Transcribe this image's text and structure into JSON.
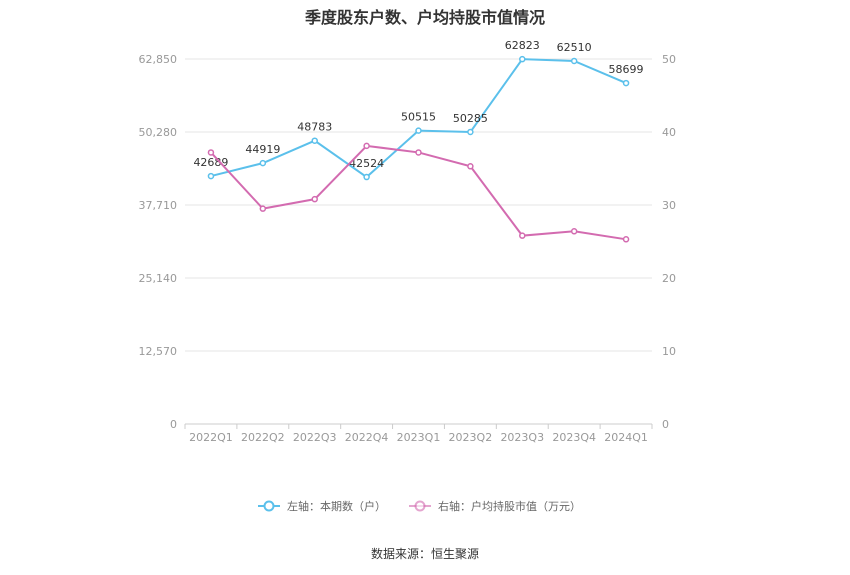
{
  "title": "季度股东户数、户均持股市值情况",
  "source": "数据来源：恒生聚源",
  "chart_data": {
    "type": "line",
    "title": "季度股东户数、户均持股市值情况",
    "categories": [
      "2022Q1",
      "2022Q2",
      "2022Q3",
      "2022Q4",
      "2023Q1",
      "2023Q2",
      "2023Q3",
      "2023Q4",
      "2024Q1"
    ],
    "left_axis": {
      "ticks": [
        "0",
        "12,570",
        "25,140",
        "37,710",
        "50,280",
        "62,850"
      ],
      "ylim": [
        0,
        62850
      ]
    },
    "right_axis": {
      "ticks": [
        "0",
        "10",
        "20",
        "30",
        "40",
        "50"
      ],
      "ylim": [
        0,
        50
      ]
    },
    "grid": true,
    "legend_position": "bottom",
    "series": [
      {
        "name": "左轴：本期数（户）",
        "axis": "left",
        "color": "#5bc0eb",
        "values": [
          42689,
          44919,
          48783,
          42524,
          50515,
          50285,
          62823,
          62510,
          58699
        ],
        "labels": [
          "42689",
          "44919",
          "48783",
          "42524",
          "50515",
          "50285",
          "62823",
          "62510",
          "58699"
        ]
      },
      {
        "name": "右轴：户均持股市值（万元）",
        "axis": "right",
        "color": "#d36bb0",
        "values": [
          37.2,
          29.5,
          30.8,
          38.1,
          37.2,
          35.3,
          25.8,
          26.4,
          25.3
        ]
      }
    ]
  }
}
